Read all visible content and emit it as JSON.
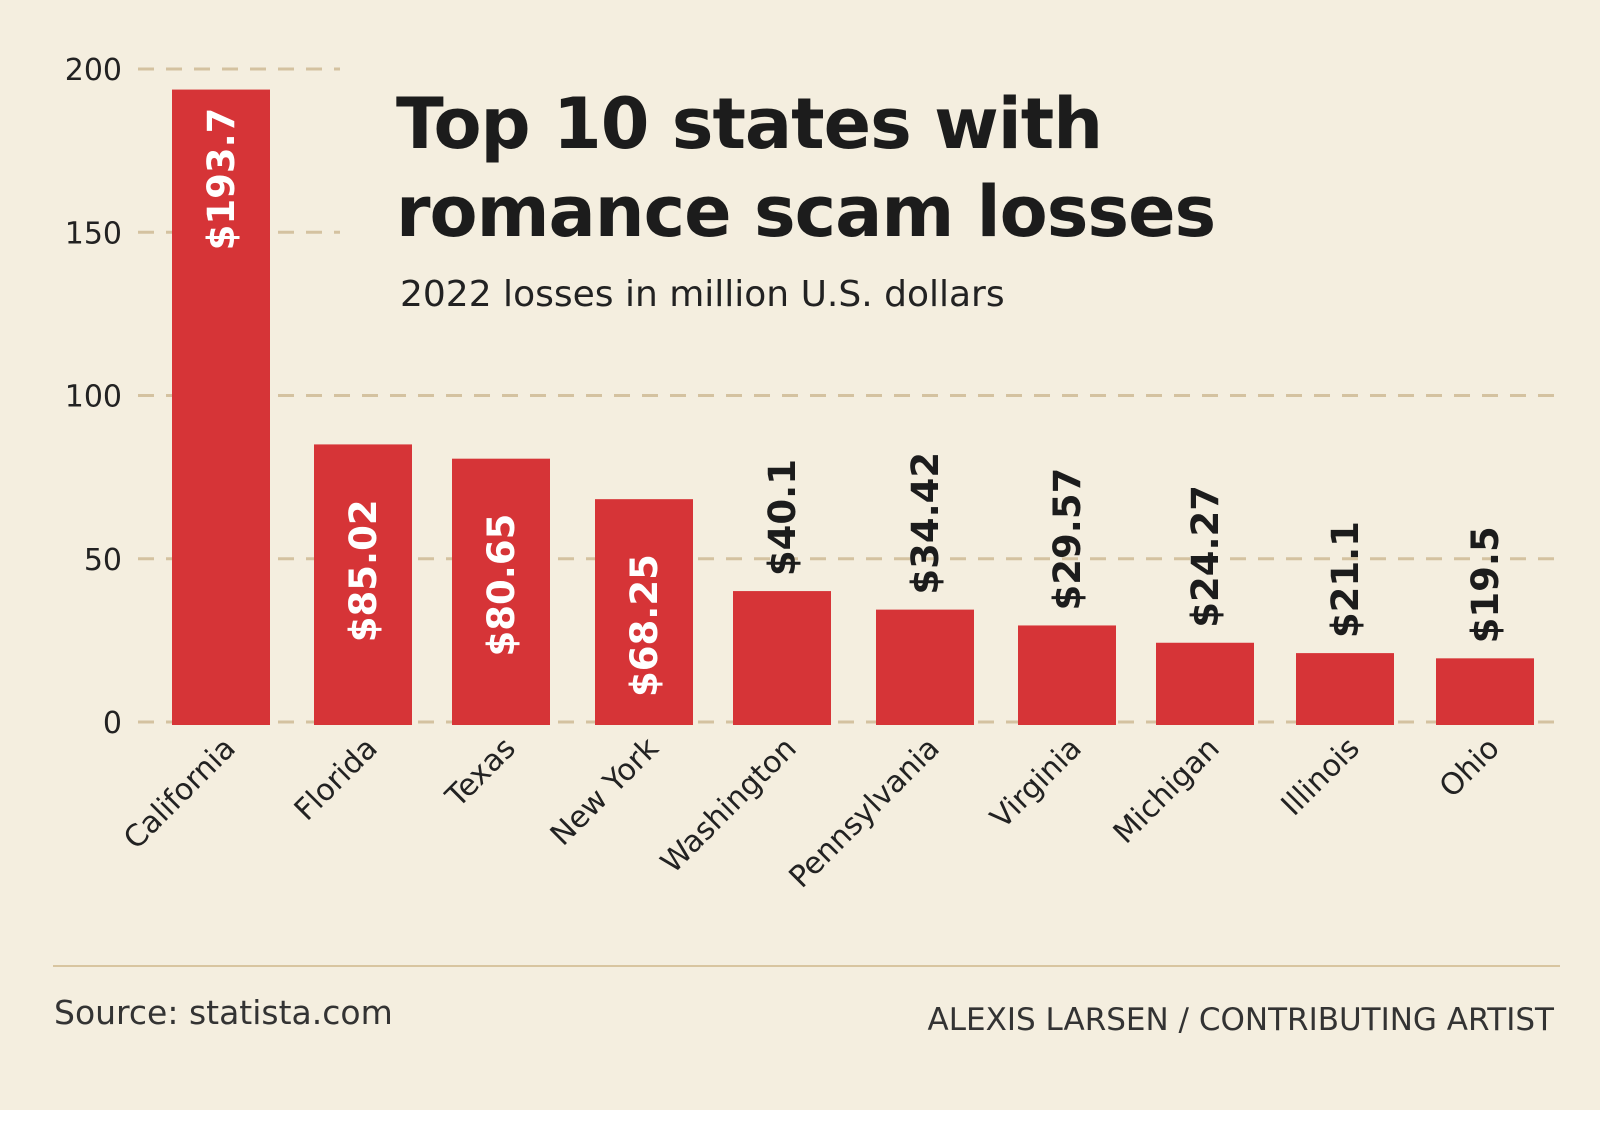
{
  "title_lines": [
    "Top 10 states with",
    "romance scam losses"
  ],
  "subtitle": "2022 losses in million U.S. dollars",
  "source": "Source: statista.com",
  "credit": "ALEXIS LARSEN / CONTRIBUTING ARTIST",
  "colors": {
    "bar": "#d63437",
    "background": "#f4eedf",
    "grid": "#d4c2a0"
  },
  "chart_data": {
    "type": "bar",
    "categories": [
      "California",
      "Florida",
      "Texas",
      "New York",
      "Washington",
      "Pennsylvania",
      "Virginia",
      "Michigan",
      "Illinois",
      "Ohio"
    ],
    "values": [
      193.7,
      85.02,
      80.65,
      68.25,
      40.1,
      34.42,
      29.57,
      24.27,
      21.1,
      19.5
    ],
    "value_labels": [
      "$193.7",
      "$85.02",
      "$80.65",
      "$68.25",
      "$40.1",
      "$34.42",
      "$29.57",
      "$24.27",
      "$21.1",
      "$19.5"
    ],
    "ylim": [
      0,
      200
    ],
    "yticks": [
      0,
      50,
      100,
      150,
      200
    ],
    "grid": true,
    "legend": "none"
  }
}
